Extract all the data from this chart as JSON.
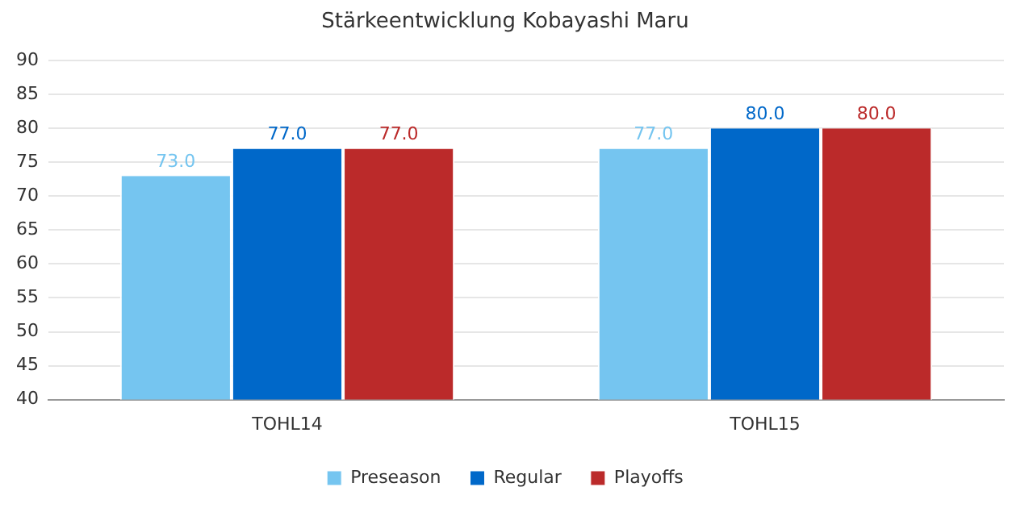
{
  "chart_data": {
    "type": "bar",
    "title": "Stärkeentwicklung Kobayashi Maru",
    "categories": [
      "TOHL14",
      "TOHL15"
    ],
    "series": [
      {
        "name": "Preseason",
        "color": "#75c5f0",
        "values": [
          73,
          77
        ],
        "value_labels": [
          "73.0",
          "77.0"
        ]
      },
      {
        "name": "Regular",
        "color": "#0068c9",
        "values": [
          77,
          80
        ],
        "value_labels": [
          "77.0",
          "80.0"
        ]
      },
      {
        "name": "Playoffs",
        "color": "#bb2a2a",
        "values": [
          77,
          80
        ],
        "value_labels": [
          "77.0",
          "80.0"
        ]
      }
    ],
    "ylim": [
      40,
      90
    ],
    "yticks": [
      40,
      45,
      50,
      55,
      60,
      65,
      70,
      75,
      80,
      85,
      90
    ],
    "grid": "y",
    "legend": "bottom"
  }
}
